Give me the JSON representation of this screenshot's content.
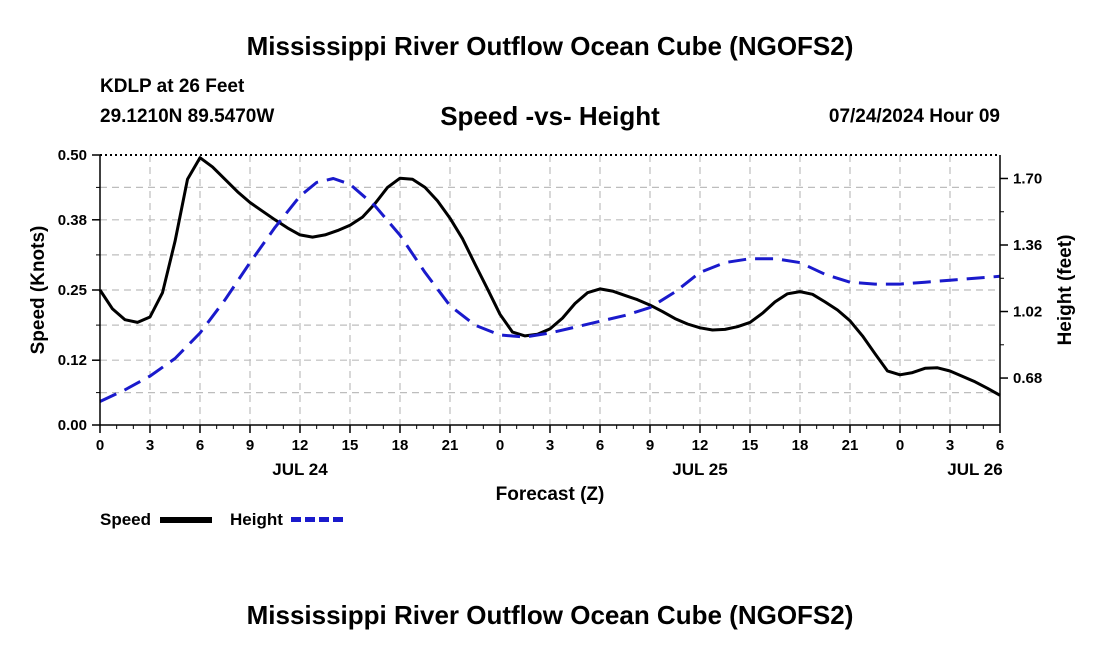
{
  "header": {
    "title": "Mississippi River Outflow Ocean Cube (NGOFS2)",
    "station_name": "KDLP at 26 Feet",
    "coordinates": "29.1210N  89.5470W",
    "subtitle": "Speed -vs- Height",
    "date": "07/24/2024 Hour 09"
  },
  "footer": {
    "title": "Mississippi River Outflow Ocean Cube (NGOFS2)"
  },
  "legend": {
    "speed_label": "Speed",
    "height_label": "Height",
    "speed_color": "#000000",
    "height_color": "#1a1acc"
  },
  "chart_data": {
    "type": "line",
    "title": "Speed -vs- Height",
    "xlabel": "Forecast (Z)",
    "ylabel": "Speed (Knots)",
    "ylabel_right": "Height (feet)",
    "xlim": [
      0,
      54
    ],
    "ylim": [
      0,
      0.5
    ],
    "ylim_right": [
      0.44,
      1.82
    ],
    "grid": true,
    "legend_position": "bottom-left",
    "x_ticks": [
      0,
      3,
      6,
      9,
      12,
      15,
      18,
      21,
      24,
      27,
      30,
      33,
      36,
      39,
      42,
      45,
      48,
      51,
      54
    ],
    "x_tick_labels": [
      "0",
      "3",
      "6",
      "9",
      "12",
      "15",
      "18",
      "21",
      "0",
      "3",
      "6",
      "9",
      "12",
      "15",
      "18",
      "21",
      "0",
      "3",
      "6"
    ],
    "day_labels": [
      {
        "x": 12,
        "label": "JUL 24"
      },
      {
        "x": 36,
        "label": "JUL 25"
      },
      {
        "x": 52.5,
        "label": "JUL 26"
      }
    ],
    "y_ticks_left": [
      0.0,
      0.12,
      0.25,
      0.38,
      0.5
    ],
    "y_tick_labels_left": [
      "0.00",
      "0.12",
      "0.25",
      "0.38",
      "0.50"
    ],
    "y_ticks_right": [
      0.68,
      1.02,
      1.36,
      1.7
    ],
    "y_tick_labels_right": [
      "0.68",
      "1.02",
      "1.36",
      "1.70"
    ],
    "series": [
      {
        "name": "Speed",
        "axis": "left",
        "color": "#000000",
        "style": "solid",
        "x": [
          0,
          0.75,
          1.5,
          2.25,
          3,
          3.75,
          4.5,
          5.25,
          6,
          6.75,
          7.5,
          8.25,
          9,
          9.75,
          10.5,
          11.25,
          12,
          12.75,
          13.5,
          14.25,
          15,
          15.75,
          16.5,
          17.25,
          18,
          18.75,
          19.5,
          20.25,
          21,
          21.75,
          22.5,
          23.25,
          24,
          24.75,
          25.5,
          26.25,
          27,
          27.75,
          28.5,
          29.25,
          30,
          30.75,
          31.5,
          32.25,
          33,
          33.75,
          34.5,
          35.25,
          36,
          36.75,
          37.5,
          38.25,
          39,
          39.75,
          40.5,
          41.25,
          42,
          42.75,
          43.5,
          44.25,
          45,
          45.75,
          46.5,
          47.25,
          48,
          48.75,
          49.5,
          50.25,
          51,
          51.75,
          52.5,
          53.25,
          54
        ],
        "values": [
          0.25,
          0.215,
          0.195,
          0.19,
          0.2,
          0.245,
          0.34,
          0.455,
          0.495,
          0.478,
          0.455,
          0.432,
          0.412,
          0.396,
          0.38,
          0.365,
          0.352,
          0.348,
          0.352,
          0.36,
          0.37,
          0.385,
          0.41,
          0.44,
          0.457,
          0.455,
          0.44,
          0.415,
          0.383,
          0.345,
          0.298,
          0.252,
          0.205,
          0.172,
          0.165,
          0.168,
          0.178,
          0.198,
          0.225,
          0.245,
          0.252,
          0.248,
          0.24,
          0.232,
          0.222,
          0.21,
          0.197,
          0.187,
          0.18,
          0.176,
          0.177,
          0.182,
          0.19,
          0.207,
          0.228,
          0.243,
          0.247,
          0.242,
          0.228,
          0.213,
          0.193,
          0.165,
          0.132,
          0.1,
          0.093,
          0.097,
          0.105,
          0.106,
          0.1,
          0.09,
          0.08,
          0.068,
          0.055
        ]
      },
      {
        "name": "Height",
        "axis": "right",
        "color": "#1a1acc",
        "style": "dashed",
        "x": [
          0,
          1.5,
          3,
          4.5,
          6,
          7.5,
          9,
          10.5,
          12,
          13,
          14,
          15,
          16.5,
          18,
          19.5,
          21,
          22.5,
          24,
          25.5,
          27,
          28.5,
          30,
          31.5,
          33,
          34.5,
          36,
          37.5,
          39,
          40.5,
          42,
          43.5,
          45,
          46.5,
          48,
          49.5,
          51,
          52.5,
          54
        ],
        "values": [
          0.56,
          0.62,
          0.69,
          0.78,
          0.91,
          1.08,
          1.27,
          1.45,
          1.61,
          1.68,
          1.7,
          1.67,
          1.56,
          1.41,
          1.22,
          1.05,
          0.95,
          0.9,
          0.89,
          0.91,
          0.94,
          0.97,
          1.0,
          1.04,
          1.12,
          1.22,
          1.27,
          1.29,
          1.29,
          1.27,
          1.21,
          1.17,
          1.16,
          1.16,
          1.17,
          1.18,
          1.19,
          1.2
        ]
      }
    ]
  }
}
